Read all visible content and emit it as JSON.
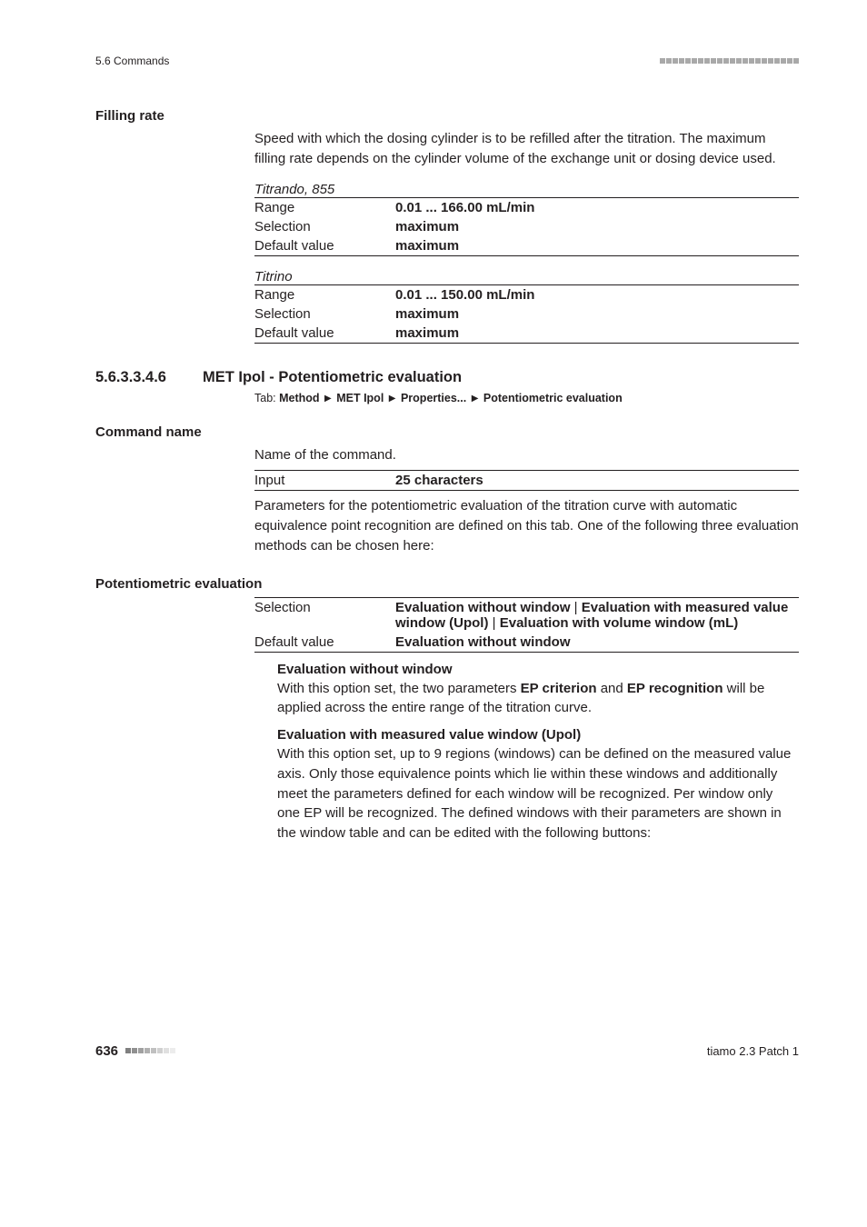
{
  "header": {
    "section_ref": "5.6 Commands"
  },
  "filling_rate": {
    "label": "Filling rate",
    "description": "Speed with which the dosing cylinder is to be refilled after the titration. The maximum filling rate depends on the cylinder volume of the exchange unit or dosing device used.",
    "group1": {
      "title": "Titrando, 855",
      "range_label": "Range",
      "range_value": "0.01 ... 166.00 mL/min",
      "selection_label": "Selection",
      "selection_value": "maximum",
      "default_label": "Default value",
      "default_value": "maximum"
    },
    "group2": {
      "title": "Titrino",
      "range_label": "Range",
      "range_value": "0.01 ... 150.00 mL/min",
      "selection_label": "Selection",
      "selection_value": "maximum",
      "default_label": "Default value",
      "default_value": "maximum"
    }
  },
  "section": {
    "number": "5.6.3.3.4.6",
    "title": "MET Ipol - Potentiometric evaluation",
    "tab_prefix": "Tab: ",
    "tab_parts": [
      "Method",
      "MET Ipol",
      "Properties...",
      "Potentiometric evaluation"
    ]
  },
  "command_name": {
    "label": "Command name",
    "description": "Name of the command.",
    "input_label": "Input",
    "input_value": "25 characters",
    "followup": "Parameters for the potentiometric evaluation of the titration curve with automatic equivalence point recognition are defined on this tab. One of the following three evaluation methods can be chosen here:"
  },
  "pot_eval": {
    "label": "Potentiometric evaluation",
    "selection_label": "Selection",
    "selection_value_1": "Evaluation without window",
    "selection_value_2": "Evaluation with measured value window (Upol)",
    "selection_value_3": "Evaluation with volume window (mL)",
    "default_label": "Default value",
    "default_value": "Evaluation without window",
    "opt1": {
      "title": "Evaluation without window",
      "text_a": "With this option set, the two parameters ",
      "bold_a": "EP criterion",
      "text_b": " and ",
      "bold_b": "EP recognition",
      "text_c": " will be applied across the entire range of the titration curve."
    },
    "opt2": {
      "title": "Evaluation with measured value window (Upol)",
      "text": "With this option set, up to 9 regions (windows) can be defined on the measured value axis. Only those equivalence points which lie within these windows and additionally meet the parameters defined for each window will be recognized. Per window only one EP will be recognized. The defined windows with their parameters are shown in the window table and can be edited with the following buttons:"
    }
  },
  "footer": {
    "page": "636",
    "product": "tiamo 2.3 Patch 1"
  }
}
